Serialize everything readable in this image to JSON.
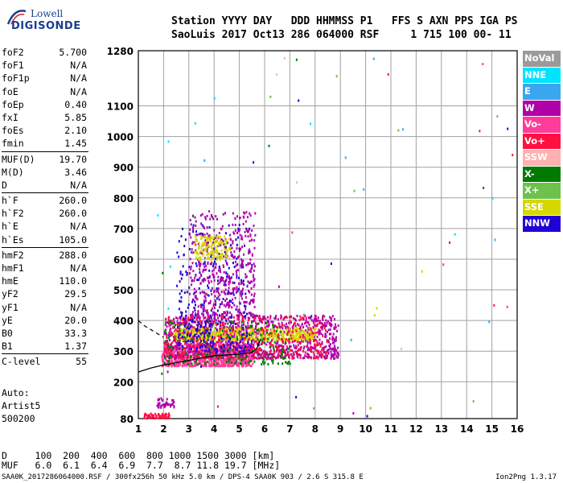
{
  "logo": {
    "line1": "Lowell",
    "line2": "DIGISONDE"
  },
  "header": {
    "line1": "Station YYYY DAY   DDD HHMMSS P1   FFS S AXN PPS IGA PS",
    "line2": "SaoLuis 2017 Oct13 286 064000 RSF     1 715 100 00- 11"
  },
  "params": {
    "group1": [
      {
        "k": "foF2",
        "v": "5.700"
      },
      {
        "k": "foF1",
        "v": "N/A"
      },
      {
        "k": "foF1p",
        "v": "N/A"
      },
      {
        "k": "foE",
        "v": "N/A"
      },
      {
        "k": "foEp",
        "v": "0.40"
      },
      {
        "k": "fxI",
        "v": "5.85"
      },
      {
        "k": "foEs",
        "v": "2.10"
      },
      {
        "k": "fmin",
        "v": "1.45"
      }
    ],
    "group2": [
      {
        "k": "MUF(D)",
        "v": "19.70"
      },
      {
        "k": "M(D)",
        "v": "3.46"
      },
      {
        "k": "D",
        "v": "N/A"
      }
    ],
    "group3": [
      {
        "k": "h`F",
        "v": "260.0"
      },
      {
        "k": "h`F2",
        "v": "260.0"
      },
      {
        "k": "h`E",
        "v": "N/A"
      },
      {
        "k": "h`Es",
        "v": "105.0"
      }
    ],
    "group4": [
      {
        "k": "hmF2",
        "v": "288.0"
      },
      {
        "k": "hmF1",
        "v": "N/A"
      },
      {
        "k": "hmE",
        "v": "110.0"
      },
      {
        "k": "yF2",
        "v": "29.5"
      },
      {
        "k": "yF1",
        "v": "N/A"
      },
      {
        "k": "yE",
        "v": "20.0"
      },
      {
        "k": "B0",
        "v": "33.3"
      },
      {
        "k": "B1",
        "v": "1.37"
      }
    ],
    "group5": [
      {
        "k": "C-level",
        "v": "55"
      }
    ]
  },
  "auto": {
    "line1": "Auto:",
    "line2": "Artist5",
    "line3": "500200"
  },
  "legend": [
    {
      "label": "NoVal",
      "color": "#9a9a9a"
    },
    {
      "label": "NNE",
      "color": "#00e5ff"
    },
    {
      "label": "E",
      "color": "#3aa6f0"
    },
    {
      "label": "W",
      "color": "#b000a8"
    },
    {
      "label": "Vo-",
      "color": "#ff3c9a"
    },
    {
      "label": "Vo+",
      "color": "#ff1040"
    },
    {
      "label": "SSW",
      "color": "#ffb0b0"
    },
    {
      "label": "X-",
      "color": "#007a00"
    },
    {
      "label": "X+",
      "color": "#6cc24a"
    },
    {
      "label": "SSE",
      "color": "#d6d600"
    },
    {
      "label": "NNW",
      "color": "#2000d8"
    }
  ],
  "bottom": {
    "row1": "D     100  200  400  600  800 1000 1500 3000 [km]",
    "row2": "MUF   6.0  6.1  6.4  6.9  7.7  8.7 11.8 19.7 [MHz]"
  },
  "footer": {
    "left": "SAA0K_2017286064000.RSF / 300fx256h 50 kHz 5.0 km / DPS-4 SAA0K 903 / 2.6 S 315.8 E",
    "right": "Ion2Png 1.3.17"
  },
  "chart_data": {
    "type": "scatter",
    "x_ticks": [
      1,
      2,
      3,
      4,
      5,
      6,
      7,
      8,
      9,
      10,
      11,
      12,
      13,
      14,
      15,
      16
    ],
    "y_ticks": [
      80,
      200,
      300,
      400,
      500,
      600,
      700,
      800,
      900,
      1000,
      1100,
      1280
    ],
    "xlim": [
      1,
      16
    ],
    "ylim": [
      80,
      1280
    ],
    "grid": true,
    "legend_position": "right",
    "trace_dashed": [
      [
        1.0,
        400
      ],
      [
        1.2,
        385
      ],
      [
        1.5,
        370
      ],
      [
        1.8,
        355
      ],
      [
        2.0,
        345
      ]
    ],
    "trace_solid": [
      [
        1.0,
        232
      ],
      [
        1.5,
        245
      ],
      [
        2.0,
        255
      ],
      [
        3.0,
        270
      ],
      [
        4.0,
        285
      ],
      [
        5.0,
        290
      ],
      [
        5.5,
        295
      ],
      [
        5.7,
        310
      ],
      [
        5.85,
        340
      ]
    ],
    "clusters": [
      {
        "name": "o-trace F",
        "color": "#ff3c9a",
        "x": [
          1.9,
          5.5
        ],
        "y": [
          255,
          330
        ],
        "n": 900
      },
      {
        "name": "x-trace F",
        "color": "#b000a8",
        "x": [
          2.0,
          8.9
        ],
        "y": [
          280,
          420
        ],
        "n": 1100
      },
      {
        "name": "SSE band",
        "color": "#d6d600",
        "x": [
          2.4,
          8.0
        ],
        "y": [
          340,
          380
        ],
        "n": 500
      },
      {
        "name": "green F",
        "color": "#007a00",
        "x": [
          2.0,
          7.0
        ],
        "y": [
          260,
          400
        ],
        "n": 250
      },
      {
        "name": "red F",
        "color": "#ff1040",
        "x": [
          2.0,
          8.5
        ],
        "y": [
          280,
          420
        ],
        "n": 400
      },
      {
        "name": "blue spread",
        "color": "#2000d8",
        "x": [
          2.5,
          5.5
        ],
        "y": [
          300,
          720
        ],
        "n": 350
      },
      {
        "name": "W spread",
        "color": "#b000a8",
        "x": [
          3.0,
          5.6
        ],
        "y": [
          420,
          760
        ],
        "n": 450
      },
      {
        "name": "SSE high",
        "color": "#d6d600",
        "x": [
          3.2,
          4.6
        ],
        "y": [
          600,
          680
        ],
        "n": 150
      },
      {
        "name": "Es low",
        "color": "#ff1040",
        "x": [
          1.2,
          2.2
        ],
        "y": [
          85,
          100
        ],
        "n": 60
      },
      {
        "name": "Es W",
        "color": "#b000a8",
        "x": [
          1.7,
          2.4
        ],
        "y": [
          120,
          150
        ],
        "n": 40
      }
    ]
  }
}
